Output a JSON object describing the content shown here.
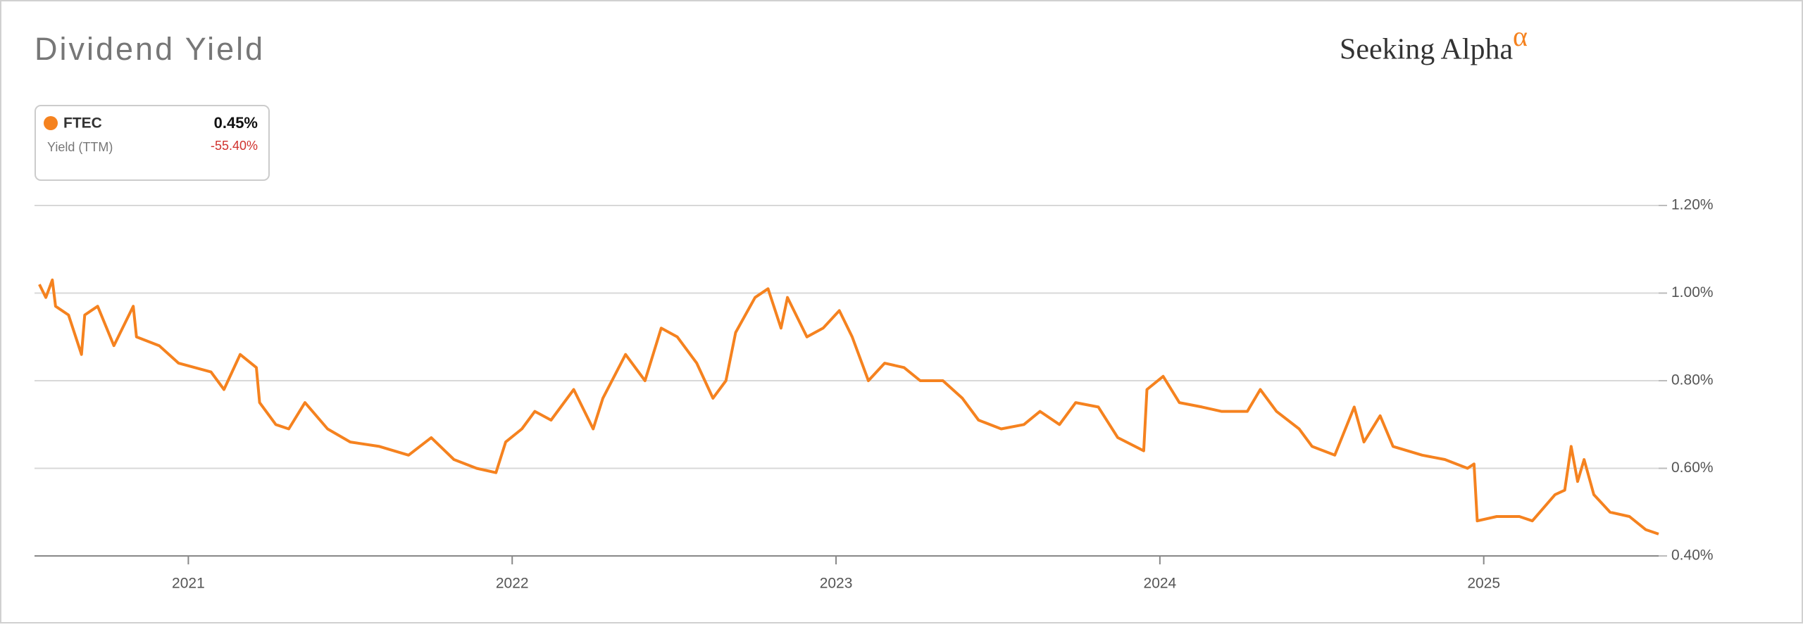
{
  "chart_data": {
    "type": "line",
    "title": "Dividend Yield",
    "logo": "Seeking Alpha",
    "logo_mark": "α",
    "legend": {
      "ticker": "FTEC",
      "metric": "Yield (TTM)",
      "current_value": "0.45%",
      "change": "-55.40%"
    },
    "x": [
      2020.54,
      2020.56,
      2020.58,
      2020.59,
      2020.63,
      2020.67,
      2020.68,
      2020.72,
      2020.77,
      2020.83,
      2020.84,
      2020.91,
      2020.97,
      2021.02,
      2021.07,
      2021.11,
      2021.16,
      2021.21,
      2021.22,
      2021.27,
      2021.31,
      2021.36,
      2021.43,
      2021.5,
      2021.59,
      2021.68,
      2021.75,
      2021.82,
      2021.89,
      2021.95,
      2021.98,
      2022.03,
      2022.07,
      2022.12,
      2022.19,
      2022.25,
      2022.28,
      2022.35,
      2022.41,
      2022.46,
      2022.51,
      2022.57,
      2022.62,
      2022.66,
      2022.69,
      2022.75,
      2022.79,
      2022.83,
      2022.85,
      2022.91,
      2022.96,
      2023.01,
      2023.05,
      2023.1,
      2023.15,
      2023.21,
      2023.26,
      2023.33,
      2023.39,
      2023.44,
      2023.51,
      2023.58,
      2023.63,
      2023.69,
      2023.74,
      2023.81,
      2023.87,
      2023.95,
      2023.96,
      2024.01,
      2024.06,
      2024.13,
      2024.19,
      2024.27,
      2024.31,
      2024.36,
      2024.43,
      2024.47,
      2024.54,
      2024.6,
      2024.63,
      2024.68,
      2024.72,
      2024.81,
      2024.88,
      2024.95,
      2024.97,
      2024.98,
      2025.04,
      2025.11,
      2025.15,
      2025.22,
      2025.25,
      2025.27,
      2025.29,
      2025.31,
      2025.34,
      2025.39,
      2025.45,
      2025.5,
      2025.54
    ],
    "series": [
      {
        "name": "FTEC",
        "color": "#f5821f",
        "values": [
          1.02,
          0.99,
          1.03,
          0.97,
          0.95,
          0.86,
          0.95,
          0.97,
          0.88,
          0.97,
          0.9,
          0.88,
          0.84,
          0.83,
          0.82,
          0.78,
          0.86,
          0.83,
          0.75,
          0.7,
          0.69,
          0.75,
          0.69,
          0.66,
          0.65,
          0.63,
          0.67,
          0.62,
          0.6,
          0.59,
          0.66,
          0.69,
          0.73,
          0.71,
          0.78,
          0.69,
          0.76,
          0.86,
          0.8,
          0.92,
          0.9,
          0.84,
          0.76,
          0.8,
          0.91,
          0.99,
          1.01,
          0.92,
          0.99,
          0.9,
          0.92,
          0.96,
          0.9,
          0.8,
          0.84,
          0.83,
          0.8,
          0.8,
          0.76,
          0.71,
          0.69,
          0.7,
          0.73,
          0.7,
          0.75,
          0.74,
          0.67,
          0.64,
          0.78,
          0.81,
          0.75,
          0.74,
          0.73,
          0.73,
          0.78,
          0.73,
          0.69,
          0.65,
          0.63,
          0.74,
          0.66,
          0.72,
          0.65,
          0.63,
          0.62,
          0.6,
          0.61,
          0.48,
          0.49,
          0.49,
          0.48,
          0.54,
          0.55,
          0.65,
          0.57,
          0.62,
          0.54,
          0.5,
          0.49,
          0.46,
          0.45
        ]
      }
    ],
    "xlim": [
      2020.525,
      2025.54
    ],
    "xticks": [
      2021,
      2022,
      2023,
      2024,
      2025
    ],
    "ylim": [
      0.4,
      1.2
    ],
    "yticks": [
      {
        "value": 0.4,
        "label": "0.40%"
      },
      {
        "value": 0.6,
        "label": "0.60%"
      },
      {
        "value": 0.8,
        "label": "0.80%"
      },
      {
        "value": 1.0,
        "label": "1.00%"
      },
      {
        "value": 1.2,
        "label": "1.20%"
      }
    ],
    "grid": true
  }
}
